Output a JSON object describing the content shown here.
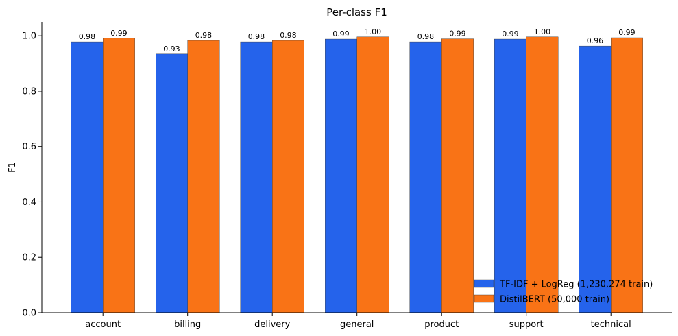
{
  "chart_data": {
    "type": "bar",
    "title": "Per-class F1",
    "xlabel": "",
    "ylabel": "F1",
    "ylim": [
      0,
      1.05
    ],
    "yticks": [
      0.0,
      0.2,
      0.4,
      0.6,
      0.8,
      1.0
    ],
    "ytick_labels": [
      "0.0",
      "0.2",
      "0.4",
      "0.6",
      "0.8",
      "1.0"
    ],
    "grid": false,
    "legend_position": "bottom-right",
    "categories": [
      "account",
      "billing",
      "delivery",
      "general",
      "product",
      "support",
      "technical"
    ],
    "series": [
      {
        "name": "TF-IDF + LogReg (1,230,274 train)",
        "color": "#2563eb",
        "values": [
          0.978,
          0.934,
          0.978,
          0.988,
          0.978,
          0.988,
          0.963
        ],
        "labels": [
          "0.98",
          "0.93",
          "0.98",
          "0.99",
          "0.98",
          "0.99",
          "0.96"
        ]
      },
      {
        "name": "DistilBERT (50,000 train)",
        "color": "#f97316",
        "values": [
          0.991,
          0.983,
          0.983,
          0.996,
          0.989,
          0.996,
          0.993
        ],
        "labels": [
          "0.99",
          "0.98",
          "0.98",
          "1.00",
          "0.99",
          "1.00",
          "0.99"
        ]
      }
    ]
  }
}
